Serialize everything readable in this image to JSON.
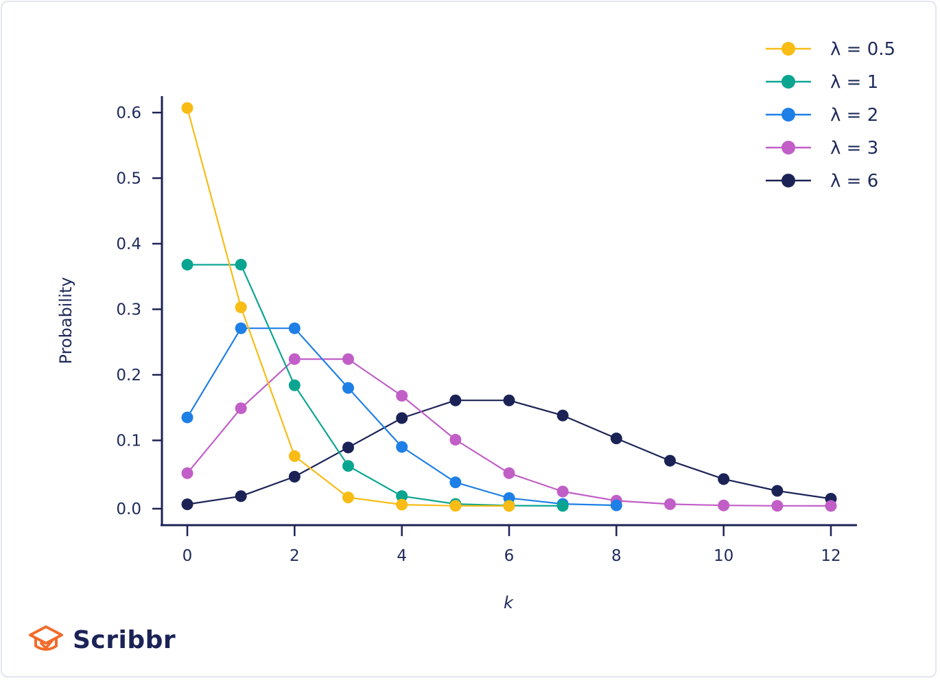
{
  "chart_data": {
    "type": "line",
    "xlabel": "k",
    "ylabel": "Probability",
    "x": [
      0,
      1,
      2,
      3,
      4,
      5,
      6,
      7,
      8,
      9,
      10,
      11,
      12
    ],
    "xticks": [
      "0",
      "2",
      "4",
      "6",
      "8",
      "10",
      "12"
    ],
    "yticks": [
      "0.0",
      "0.1",
      "0.2",
      "0.3",
      "0.4",
      "0.5",
      "0.6"
    ],
    "xlim": [
      0,
      12
    ],
    "ylim": [
      0,
      0.6
    ],
    "legend_position": "top-right",
    "grid": false,
    "series": [
      {
        "name": "λ = 0.5",
        "color": "#f8bc15",
        "values": [
          0.607,
          0.303,
          0.076,
          0.013,
          0.002,
          0.0002,
          0,
          null,
          null,
          null,
          null,
          null,
          null
        ]
      },
      {
        "name": "λ = 1",
        "color": "#0aa590",
        "values": [
          0.368,
          0.368,
          0.184,
          0.061,
          0.015,
          0.003,
          0.0005,
          0.0001,
          null,
          null,
          null,
          null,
          null
        ]
      },
      {
        "name": "λ = 2",
        "color": "#1e7fe6",
        "values": [
          0.135,
          0.271,
          0.271,
          0.18,
          0.09,
          0.036,
          0.012,
          0.003,
          0.0009,
          null,
          null,
          null,
          null
        ]
      },
      {
        "name": "λ = 3",
        "color": "#c15ec7",
        "values": [
          0.05,
          0.149,
          0.224,
          0.224,
          0.168,
          0.101,
          0.05,
          0.022,
          0.008,
          0.0027,
          0.0008,
          0.0002,
          6e-05
        ]
      },
      {
        "name": "λ = 6",
        "color": "#1b2356",
        "values": [
          0.0025,
          0.0149,
          0.0446,
          0.0892,
          0.134,
          0.161,
          0.161,
          0.138,
          0.103,
          0.069,
          0.041,
          0.023,
          0.011
        ]
      }
    ]
  },
  "logo": {
    "text": "Scribbr"
  }
}
